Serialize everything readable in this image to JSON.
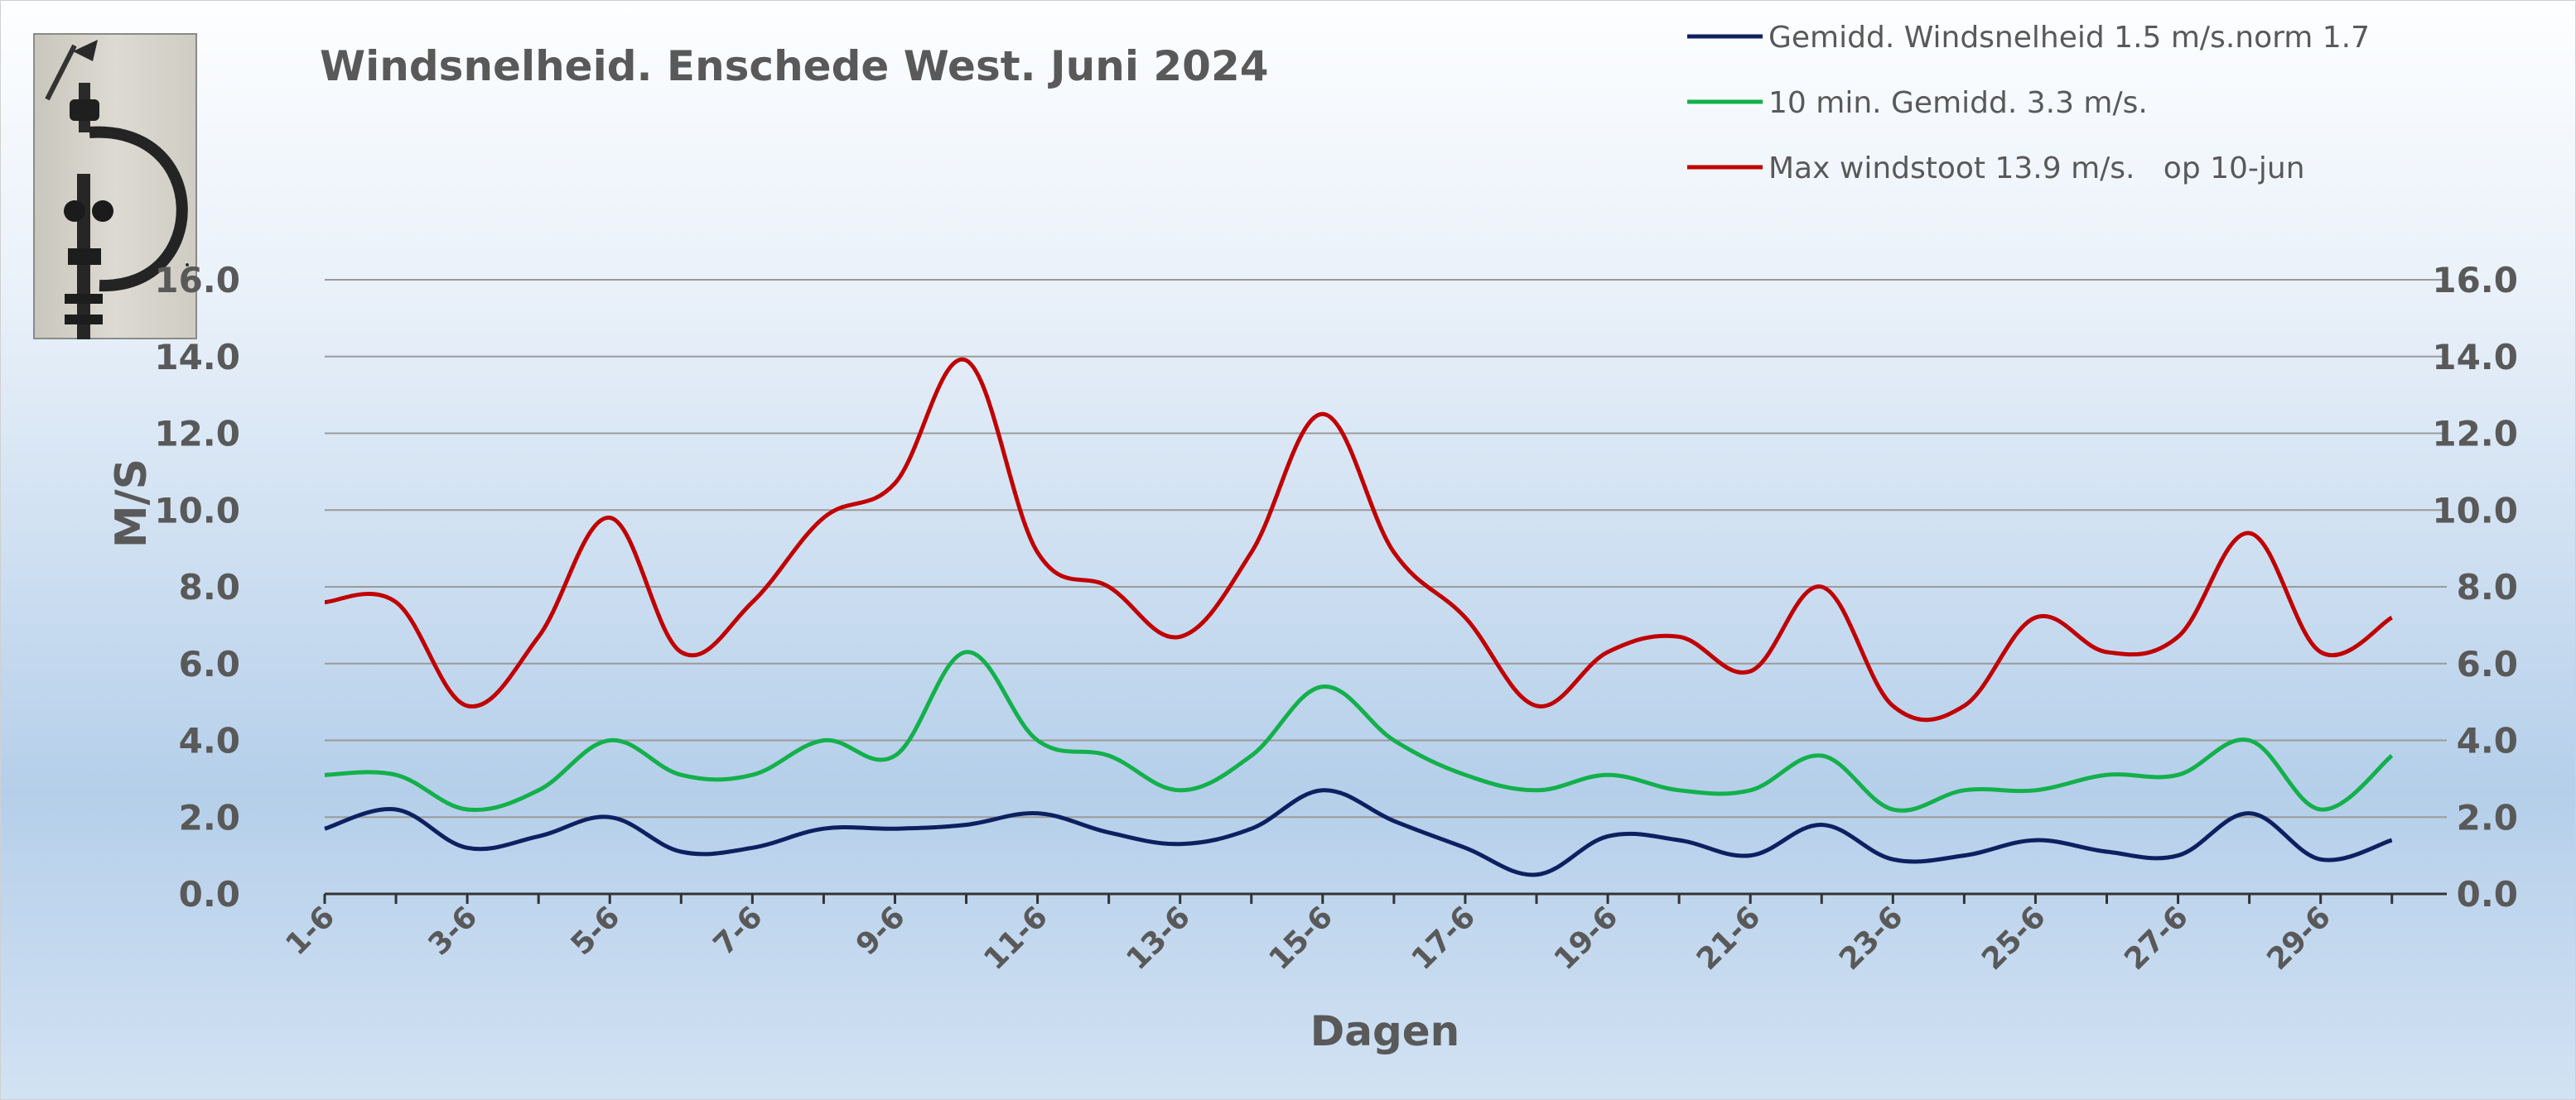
{
  "chart_data": {
    "type": "line",
    "title": "Windsnelheid. Enschede West. Juni 2024",
    "xlabel": "Dagen",
    "ylabel": "M/S",
    "ylim": [
      0,
      16
    ],
    "ytick_labels": [
      "0.0",
      "2.0",
      "4.0",
      "6.0",
      "8.0",
      "10.0",
      "12.0",
      "14.0",
      "16.0"
    ],
    "y_axis_sides": "left-and-right",
    "grid": "horizontal",
    "legend_position": "top-right",
    "x": [
      "1-6",
      "2-6",
      "3-6",
      "4-6",
      "5-6",
      "6-6",
      "7-6",
      "8-6",
      "9-6",
      "10-6",
      "11-6",
      "12-6",
      "13-6",
      "14-6",
      "15-6",
      "16-6",
      "17-6",
      "18-6",
      "19-6",
      "20-6",
      "21-6",
      "22-6",
      "23-6",
      "24-6",
      "25-6",
      "26-6",
      "27-6",
      "28-6",
      "29-6",
      "30-6"
    ],
    "x_tick_labels": [
      "1-6",
      "3-6",
      "5-6",
      "7-6",
      "9-6",
      "11-6",
      "13-6",
      "15-6",
      "17-6",
      "19-6",
      "21-6",
      "23-6",
      "25-6",
      "27-6",
      "29-6"
    ],
    "series": [
      {
        "name": "Gemidd. Windsnelheid 1.5 m/s.norm 1.7",
        "color": "#0d2060",
        "values": [
          1.7,
          2.2,
          1.2,
          1.5,
          2.0,
          1.1,
          1.2,
          1.7,
          1.7,
          1.8,
          2.1,
          1.6,
          1.3,
          1.7,
          2.7,
          1.9,
          1.2,
          0.5,
          1.5,
          1.4,
          1.0,
          1.8,
          0.9,
          1.0,
          1.4,
          1.1,
          1.0,
          2.1,
          0.9,
          1.4
        ]
      },
      {
        "name": "10 min. Gemidd. 3.3 m/s.",
        "color": "#13b04b",
        "values": [
          3.1,
          3.1,
          2.2,
          2.7,
          4.0,
          3.1,
          3.1,
          4.0,
          3.6,
          6.3,
          4.0,
          3.6,
          2.7,
          3.6,
          5.4,
          4.0,
          3.1,
          2.7,
          3.1,
          2.7,
          2.7,
          3.6,
          2.2,
          2.7,
          2.7,
          3.1,
          3.1,
          4.0,
          2.2,
          3.6
        ]
      },
      {
        "name": "Max windstoot 13.9 m/s.   op 10-jun",
        "color": "#c00000",
        "values": [
          7.6,
          7.6,
          4.9,
          6.7,
          9.8,
          6.3,
          7.6,
          9.8,
          10.7,
          13.9,
          8.9,
          8.0,
          6.7,
          8.9,
          12.5,
          8.9,
          7.2,
          4.9,
          6.3,
          6.7,
          5.8,
          8.0,
          4.9,
          4.9,
          7.2,
          6.3,
          6.7,
          9.4,
          6.3,
          7.2
        ]
      }
    ]
  },
  "photo": {
    "icon": "anemometer-photo-icon"
  }
}
